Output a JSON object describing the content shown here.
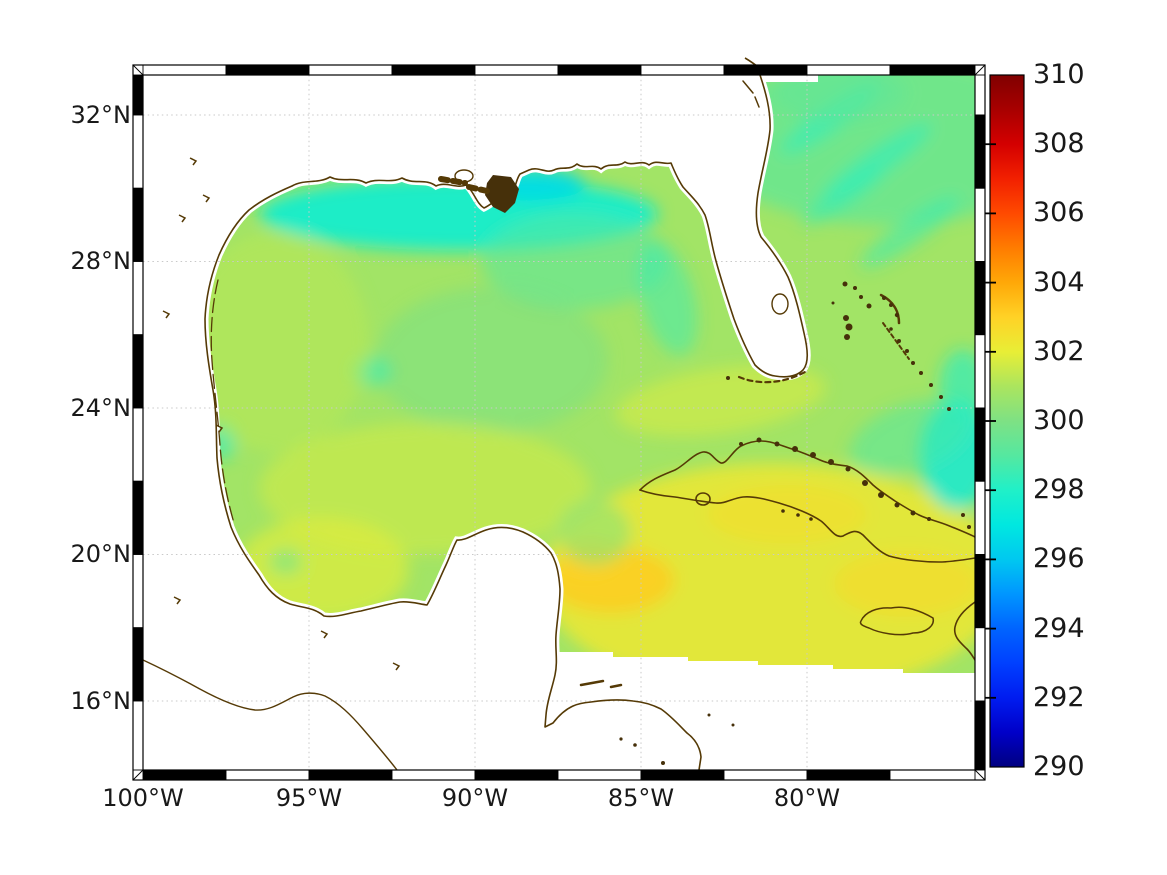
{
  "figure": {
    "background": "#ffffff",
    "map": {
      "land_color": "#ffffff",
      "coastline_color": "#553a06",
      "island_fill_color": "#46300a",
      "gridline_color": "#c9c9c9",
      "frame_colors": [
        "#000000",
        "#ffffff"
      ]
    },
    "axes": {
      "lat_tick_labels": [
        "32°N",
        "28°N",
        "24°N",
        "20°N",
        "16°N"
      ],
      "lon_tick_labels": [
        "100°W",
        "95°W",
        "90°W",
        "85°W",
        "80°W"
      ],
      "tick_text_color": "#191919"
    },
    "colorbar": {
      "tick_labels": [
        "310",
        "308",
        "306",
        "304",
        "302",
        "300",
        "298",
        "296",
        "294",
        "292",
        "290"
      ]
    }
  },
  "chart_data": {
    "type": "heatmap",
    "subject": "Sea-surface temperature style field (Kelvin) over the Gulf of Mexico, Florida shelf, Bahamas and northwest Caribbean; white = land / no data; dark-brown coastlines; black-and-white alternating map frame",
    "projection": "longitude-latitude",
    "x_axis": {
      "tick_values_deg_west": [
        100,
        95,
        90,
        85,
        80
      ],
      "range_deg_west": [
        100,
        74.9
      ]
    },
    "y_axis": {
      "tick_values_deg_north": [
        32,
        28,
        24,
        20,
        16
      ],
      "range_deg_north": [
        14.1,
        33.2
      ]
    },
    "grid": {
      "style": "dotted",
      "lon_deg_west": [
        95,
        90,
        85,
        80
      ],
      "lat_deg_north": [
        32,
        28,
        24,
        20,
        16
      ]
    },
    "colorbar": {
      "range": [
        290,
        310
      ],
      "ticks": [
        310,
        308,
        306,
        304,
        302,
        300,
        298,
        296,
        294,
        292,
        290
      ],
      "colormap": "jet",
      "stops": [
        [
          290,
          "#000080"
        ],
        [
          291,
          "#0000c8"
        ],
        [
          292,
          "#001cf0"
        ],
        [
          293,
          "#0040ff"
        ],
        [
          294,
          "#0064ff"
        ],
        [
          295,
          "#0096ff"
        ],
        [
          296,
          "#00c8f0"
        ],
        [
          297,
          "#00e8e0"
        ],
        [
          298,
          "#20f0c8"
        ],
        [
          299,
          "#55e8a0"
        ],
        [
          300,
          "#7ee184"
        ],
        [
          301,
          "#abe55e"
        ],
        [
          302,
          "#e8ee36"
        ],
        [
          303,
          "#ffd226"
        ],
        [
          304,
          "#ffa808"
        ],
        [
          305,
          "#ff7c00"
        ],
        [
          306,
          "#ff4a00"
        ],
        [
          307,
          "#f22000"
        ],
        [
          308,
          "#d40000"
        ],
        [
          309,
          "#a80000"
        ],
        [
          310,
          "#800000"
        ]
      ]
    },
    "base_field_value": 300.8,
    "no_data": {
      "color": "#ffffff",
      "note": "no data over land and south of a stepped swath edge running from about (87.5°W, 17.3°N) to (74.9°W, 16.7°N)"
    },
    "field_regions": [
      {
        "name": "northern-shelf-cool-band",
        "lon_w": 90.5,
        "lat_n": 29.3,
        "rx_deg": 6.0,
        "ry_deg": 1.0,
        "value": 297.6,
        "opacity": 0.9,
        "rot_deg": 0
      },
      {
        "name": "mobile-coastal-cold",
        "lon_w": 88.2,
        "lat_n": 30.1,
        "rx_deg": 1.5,
        "ry_deg": 0.45,
        "value": 296.6,
        "opacity": 0.9,
        "rot_deg": 0
      },
      {
        "name": "ne-gulf-cool",
        "lon_w": 87.0,
        "lat_n": 28.0,
        "rx_deg": 2.8,
        "ry_deg": 1.3,
        "value": 299.0,
        "opacity": 0.55,
        "rot_deg": 0
      },
      {
        "name": "west-florida-shelf-cool",
        "lon_w": 84.2,
        "lat_n": 27.0,
        "rx_deg": 0.8,
        "ry_deg": 1.6,
        "value": 298.4,
        "opacity": 0.5,
        "rot_deg": -15
      },
      {
        "name": "central-gulf-green",
        "lon_w": 89.5,
        "lat_n": 25.3,
        "rx_deg": 3.5,
        "ry_deg": 2.0,
        "value": 299.8,
        "opacity": 0.5,
        "rot_deg": 0
      },
      {
        "name": "teal-spot-25n-93w",
        "lon_w": 93.1,
        "lat_n": 25.0,
        "rx_deg": 0.6,
        "ry_deg": 0.4,
        "value": 298.4,
        "opacity": 0.6,
        "rot_deg": 0
      },
      {
        "name": "mexico-coast-cool-spot",
        "lon_w": 97.6,
        "lat_n": 23.1,
        "rx_deg": 0.4,
        "ry_deg": 0.5,
        "value": 297.9,
        "opacity": 0.6,
        "rot_deg": 0
      },
      {
        "name": "west-gulf-warm",
        "lon_w": 96.0,
        "lat_n": 25.8,
        "rx_deg": 2.8,
        "ry_deg": 3.0,
        "value": 301.2,
        "opacity": 0.6,
        "rot_deg": 0
      },
      {
        "name": "south-gulf-warm",
        "lon_w": 91.5,
        "lat_n": 21.8,
        "rx_deg": 5.0,
        "ry_deg": 1.8,
        "value": 301.5,
        "opacity": 0.7,
        "rot_deg": 0
      },
      {
        "name": "campeche-bay-warm",
        "lon_w": 94.6,
        "lat_n": 19.6,
        "rx_deg": 2.6,
        "ry_deg": 1.4,
        "value": 301.8,
        "opacity": 0.75,
        "rot_deg": 0
      },
      {
        "name": "campeche-teal-spot",
        "lon_w": 95.7,
        "lat_n": 19.8,
        "rx_deg": 0.5,
        "ry_deg": 0.35,
        "value": 299.6,
        "opacity": 0.6,
        "rot_deg": 0
      },
      {
        "name": "caribbean-warm",
        "lon_w": 81.0,
        "lat_n": 19.3,
        "rx_deg": 7.0,
        "ry_deg": 3.2,
        "value": 302.2,
        "opacity": 0.85,
        "rot_deg": 0
      },
      {
        "name": "nw-caribbean-orange",
        "lon_w": 85.9,
        "lat_n": 19.3,
        "rx_deg": 1.9,
        "ry_deg": 0.9,
        "value": 303.2,
        "opacity": 0.8,
        "rot_deg": 0
      },
      {
        "name": "nw-caribbean-orange-2",
        "lon_w": 86.6,
        "lat_n": 19.9,
        "rx_deg": 0.9,
        "ry_deg": 0.5,
        "value": 303.0,
        "opacity": 0.8,
        "rot_deg": 0
      },
      {
        "name": "south-of-cuba-orange",
        "lon_w": 80.6,
        "lat_n": 21.1,
        "rx_deg": 2.4,
        "ry_deg": 0.8,
        "value": 302.7,
        "opacity": 0.45,
        "rot_deg": 0
      },
      {
        "name": "east-of-jamaica-orange",
        "lon_w": 77.0,
        "lat_n": 19.2,
        "rx_deg": 2.2,
        "ry_deg": 0.9,
        "value": 302.8,
        "opacity": 0.5,
        "rot_deg": 0
      },
      {
        "name": "florida-straits-warm",
        "lon_w": 82.6,
        "lat_n": 24.2,
        "rx_deg": 3.2,
        "ry_deg": 0.9,
        "value": 301.8,
        "opacity": 0.55,
        "rot_deg": -8
      },
      {
        "name": "atlantic-green",
        "lon_w": 77.6,
        "lat_n": 31.3,
        "rx_deg": 5.5,
        "ry_deg": 2.3,
        "value": 299.2,
        "opacity": 0.7,
        "rot_deg": 0
      },
      {
        "name": "atlantic-cyan-streak-1",
        "lon_w": 79.3,
        "lat_n": 31.9,
        "rx_deg": 1.8,
        "ry_deg": 0.35,
        "value": 298.2,
        "opacity": 0.6,
        "rot_deg": -35
      },
      {
        "name": "atlantic-cyan-streak-2",
        "lon_w": 77.9,
        "lat_n": 30.7,
        "rx_deg": 2.0,
        "ry_deg": 0.35,
        "value": 298.2,
        "opacity": 0.6,
        "rot_deg": -35
      },
      {
        "name": "atlantic-cyan-streak-3",
        "lon_w": 78.9,
        "lat_n": 29.8,
        "rx_deg": 1.5,
        "ry_deg": 0.3,
        "value": 298.4,
        "opacity": 0.55,
        "rot_deg": -35
      },
      {
        "name": "atlantic-cyan-streak-4",
        "lon_w": 76.9,
        "lat_n": 28.8,
        "rx_deg": 1.8,
        "ry_deg": 0.35,
        "value": 298.4,
        "opacity": 0.55,
        "rot_deg": -35
      },
      {
        "name": "right-edge-cool",
        "lon_w": 75.5,
        "lat_n": 22.7,
        "rx_deg": 1.1,
        "ry_deg": 1.5,
        "value": 297.3,
        "opacity": 0.8,
        "rot_deg": 0
      },
      {
        "name": "right-edge-cool-2",
        "lon_w": 75.3,
        "lat_n": 24.6,
        "rx_deg": 0.7,
        "ry_deg": 1.0,
        "value": 297.9,
        "opacity": 0.6,
        "rot_deg": 0
      },
      {
        "name": "old-bahama-channel-teal",
        "lon_w": 76.9,
        "lat_n": 23.2,
        "rx_deg": 1.9,
        "ry_deg": 0.9,
        "value": 298.8,
        "opacity": 0.5,
        "rot_deg": -20
      },
      {
        "name": "ne-yucatan-green",
        "lon_w": 86.4,
        "lat_n": 20.6,
        "rx_deg": 1.1,
        "ry_deg": 0.9,
        "value": 300.2,
        "opacity": 0.6,
        "rot_deg": 0
      },
      {
        "name": "georgia-coast-green",
        "lon_w": 79.0,
        "lat_n": 32.6,
        "rx_deg": 2.0,
        "ry_deg": 0.8,
        "value": 299.3,
        "opacity": 0.6,
        "rot_deg": 0
      }
    ]
  }
}
